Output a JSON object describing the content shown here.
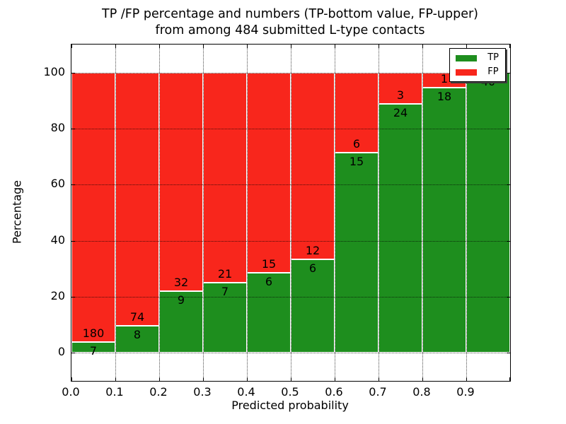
{
  "title": {
    "line1": "TP /FP percentage and numbers (TP-bottom value, FP-upper)",
    "line2": "from among 484 submitted L-type contacts"
  },
  "colors": {
    "tp": "#1e8e1e",
    "fp": "#f8261c",
    "bar_edge": "#ffffff",
    "grid": "#000000",
    "legend_shadow": "#3f3f3f"
  },
  "chart_data": {
    "type": "bar",
    "stacked": true,
    "title": "TP /FP percentage and numbers (TP-bottom value, FP-upper) from among 484 submitted L-type contacts",
    "xlabel": "Predicted probability",
    "ylabel": "Percentage",
    "total_contacts": 484,
    "xlim": [
      0.0,
      1.0
    ],
    "ylim": [
      -10,
      110
    ],
    "yticks": [
      0,
      20,
      40,
      60,
      80,
      100
    ],
    "xtick_labels": [
      "0.0",
      "0.1",
      "0.2",
      "0.3",
      "0.4",
      "0.5",
      "0.6",
      "0.7",
      "0.8",
      "0.9"
    ],
    "bin_width": 0.1,
    "grid": "dotted",
    "legend_position": "upper right",
    "series": [
      {
        "name": "TP",
        "color": "#1e8e1e",
        "counts": [
          7,
          8,
          9,
          7,
          6,
          6,
          15,
          24,
          18,
          40
        ],
        "percent": [
          3.74,
          9.76,
          21.95,
          25.0,
          28.57,
          33.33,
          71.43,
          88.89,
          94.74,
          100.0
        ]
      },
      {
        "name": "FP",
        "color": "#f8261c",
        "counts": [
          180,
          74,
          32,
          21,
          15,
          12,
          6,
          3,
          1,
          0
        ],
        "percent": [
          96.26,
          90.24,
          78.05,
          75.0,
          71.43,
          66.67,
          28.57,
          11.11,
          5.26,
          0.0
        ]
      }
    ]
  }
}
